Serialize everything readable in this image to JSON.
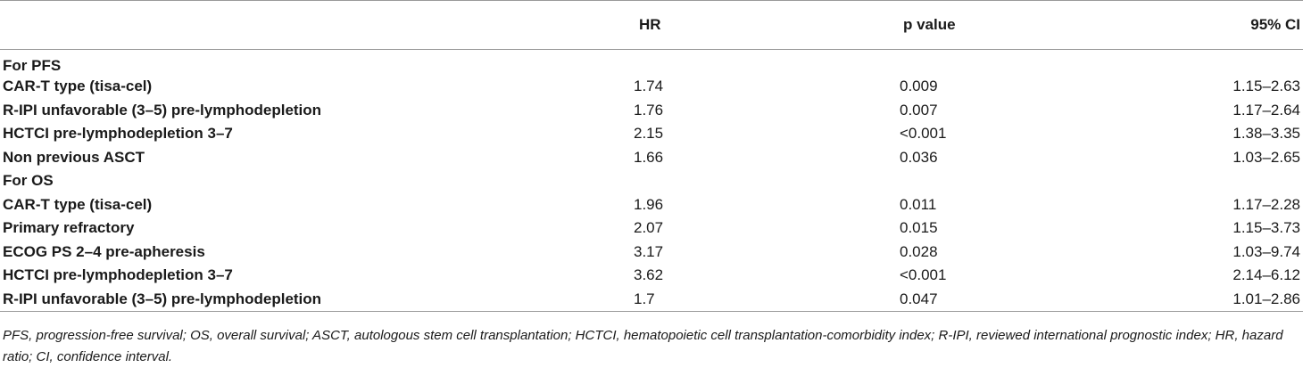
{
  "table": {
    "headers": {
      "label": "",
      "hr": "HR",
      "p_value": "p value",
      "ci": "95% CI"
    },
    "rows": [
      {
        "label": "For PFS",
        "hr": "",
        "p_value": "",
        "ci": ""
      },
      {
        "label": "CAR-T type (tisa-cel)",
        "hr": "1.74",
        "p_value": "0.009",
        "ci": "1.15–2.63"
      },
      {
        "label": "R-IPI unfavorable (3–5) pre-lymphodepletion",
        "hr": "1.76",
        "p_value": "0.007",
        "ci": "1.17–2.64"
      },
      {
        "label": "HCTCI pre-lymphodepletion 3–7",
        "hr": "2.15",
        "p_value": "<0.001",
        "ci": "1.38–3.35"
      },
      {
        "label": "Non previous ASCT",
        "hr": "1.66",
        "p_value": "0.036",
        "ci": "1.03–2.65"
      },
      {
        "label": "For OS",
        "hr": "",
        "p_value": "",
        "ci": ""
      },
      {
        "label": "CAR-T type (tisa-cel)",
        "hr": "1.96",
        "p_value": "0.011",
        "ci": "1.17–2.28"
      },
      {
        "label": "Primary refractory",
        "hr": "2.07",
        "p_value": "0.015",
        "ci": "1.15–3.73"
      },
      {
        "label": "ECOG PS 2–4 pre-apheresis",
        "hr": "3.17",
        "p_value": "0.028",
        "ci": "1.03–9.74"
      },
      {
        "label": "HCTCI pre-lymphodepletion 3–7",
        "hr": "3.62",
        "p_value": "<0.001",
        "ci": "2.14–6.12"
      },
      {
        "label": "R-IPI unfavorable (3–5) pre-lymphodepletion",
        "hr": "1.7",
        "p_value": "0.047",
        "ci": "1.01–2.86"
      }
    ]
  },
  "footnote": "PFS, progression-free survival; OS, overall survival; ASCT, autologous stem cell transplantation; HCTCI, hematopoietic cell transplantation-comorbidity index; R-IPI, reviewed international prognostic index; HR, hazard ratio; CI, confidence interval."
}
